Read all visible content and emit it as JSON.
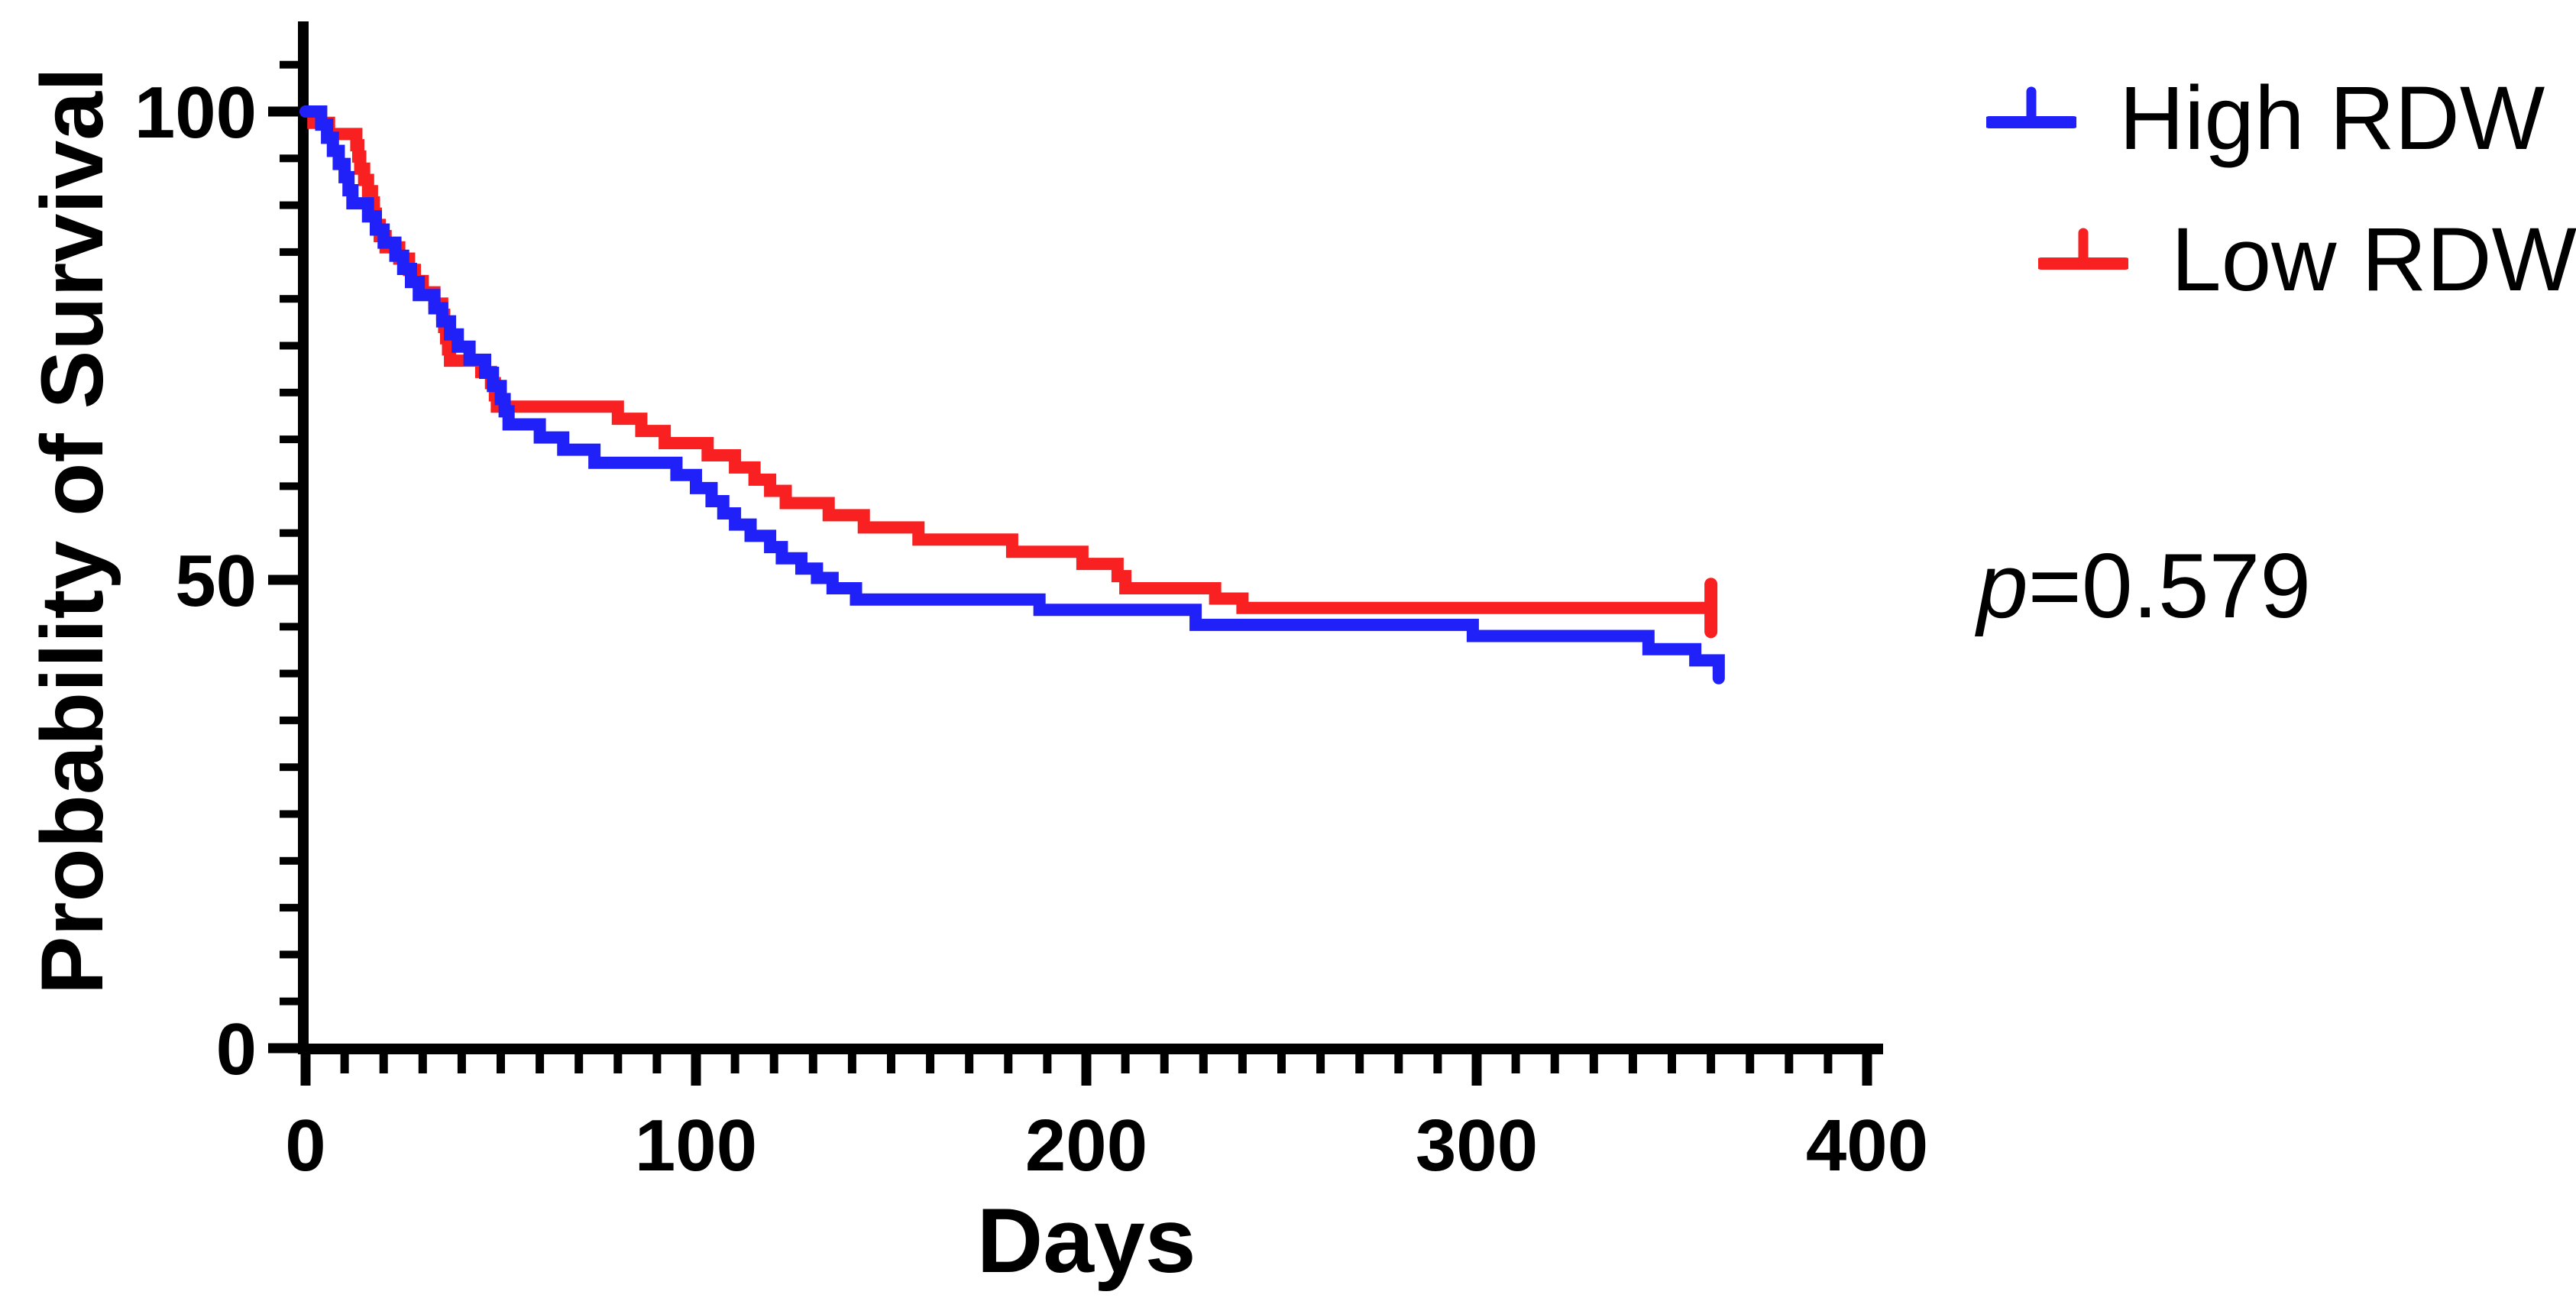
{
  "axes": {
    "x": {
      "label": "Days",
      "min": 0,
      "max": 400,
      "major_ticks": [
        0,
        100,
        200,
        300,
        400
      ],
      "minor_tick_interval": 10
    },
    "y": {
      "label": "Probability of Survival",
      "min": 0,
      "max": 110,
      "major_ticks": [
        100,
        50,
        0
      ],
      "minor_tick_interval": 5
    }
  },
  "annotation": {
    "p_symbol": "p",
    "p_text": "=0.579"
  },
  "colors": {
    "high_rdw": "#2020f8",
    "low_rdw": "#f82020",
    "axis": "#000000",
    "background": "#ffffff"
  },
  "chart_data": {
    "type": "line",
    "subtype": "kaplan_meier_step",
    "title": "",
    "xlabel": "Days",
    "ylabel": "Probability of Survival",
    "xlim": [
      0,
      400
    ],
    "ylim": [
      0,
      110
    ],
    "x_major_ticks": [
      0,
      100,
      200,
      300,
      400
    ],
    "x_minor_tick_interval": 10,
    "y_major_ticks": [
      100,
      50,
      0
    ],
    "y_minor_tick_interval": 5,
    "grid": false,
    "legend_position": "top-right",
    "annotation": "p=0.579",
    "series": [
      {
        "name": "High RDW",
        "color": "#2020f8",
        "end_marker": "final_drop",
        "points": [
          [
            0,
            100
          ],
          [
            4,
            98.6
          ],
          [
            5.5,
            97.2
          ],
          [
            7,
            95.8
          ],
          [
            8.5,
            94.4
          ],
          [
            10,
            93.0
          ],
          [
            11,
            91.6
          ],
          [
            12,
            90.2
          ],
          [
            16,
            88.8
          ],
          [
            18,
            87.4
          ],
          [
            20,
            86.0
          ],
          [
            23,
            84.6
          ],
          [
            25,
            83.2
          ],
          [
            27,
            81.8
          ],
          [
            29,
            80.4
          ],
          [
            33,
            79.0
          ],
          [
            35,
            77.6
          ],
          [
            37,
            76.2
          ],
          [
            39,
            74.9
          ],
          [
            42,
            73.5
          ],
          [
            46,
            72.1
          ],
          [
            48,
            70.7
          ],
          [
            50,
            69.3
          ],
          [
            51,
            68.0
          ],
          [
            52,
            66.6
          ],
          [
            60,
            65.2
          ],
          [
            66,
            63.9
          ],
          [
            74,
            62.5
          ],
          [
            95,
            61.2
          ],
          [
            100,
            59.8
          ],
          [
            104,
            58.4
          ],
          [
            107,
            57.1
          ],
          [
            110,
            55.9
          ],
          [
            114,
            54.7
          ],
          [
            119,
            53.5
          ],
          [
            122,
            52.3
          ],
          [
            127,
            51.2
          ],
          [
            131,
            50.2
          ],
          [
            135,
            49.1
          ],
          [
            141,
            47.9
          ],
          [
            188,
            46.8
          ],
          [
            228,
            45.2
          ],
          [
            299,
            44.0
          ],
          [
            344,
            42.6
          ],
          [
            356,
            41.4
          ],
          [
            362,
            39.5
          ]
        ]
      },
      {
        "name": "Low RDW",
        "color": "#f82020",
        "end_marker": "censor_tick",
        "censor_day": 360,
        "points": [
          [
            0,
            100
          ],
          [
            2,
            98.8
          ],
          [
            6,
            97.6
          ],
          [
            13,
            96.4
          ],
          [
            13.5,
            95.2
          ],
          [
            14,
            93.9
          ],
          [
            15,
            92.7
          ],
          [
            16,
            91.5
          ],
          [
            17,
            90.3
          ],
          [
            17.5,
            89.1
          ],
          [
            18,
            87.9
          ],
          [
            19,
            86.7
          ],
          [
            20.5,
            85.5
          ],
          [
            24,
            84.3
          ],
          [
            26.5,
            83.1
          ],
          [
            28,
            81.9
          ],
          [
            30,
            80.7
          ],
          [
            33,
            79.5
          ],
          [
            35,
            78.3
          ],
          [
            35.5,
            77.0
          ],
          [
            36,
            75.8
          ],
          [
            36.5,
            74.6
          ],
          [
            37,
            73.4
          ],
          [
            45,
            72.2
          ],
          [
            47.5,
            71.0
          ],
          [
            48.5,
            69.7
          ],
          [
            49,
            68.5
          ],
          [
            80,
            67.2
          ],
          [
            86,
            65.9
          ],
          [
            92,
            64.6
          ],
          [
            103,
            63.3
          ],
          [
            110,
            62.0
          ],
          [
            115,
            60.7
          ],
          [
            119,
            59.5
          ],
          [
            123,
            58.2
          ],
          [
            134,
            56.9
          ],
          [
            143,
            55.6
          ],
          [
            157,
            54.3
          ],
          [
            181,
            53.0
          ],
          [
            199,
            51.7
          ],
          [
            208,
            50.4
          ],
          [
            210,
            49.1
          ],
          [
            233,
            48.0
          ],
          [
            240,
            47.0
          ],
          [
            360,
            47.0
          ]
        ]
      }
    ]
  }
}
